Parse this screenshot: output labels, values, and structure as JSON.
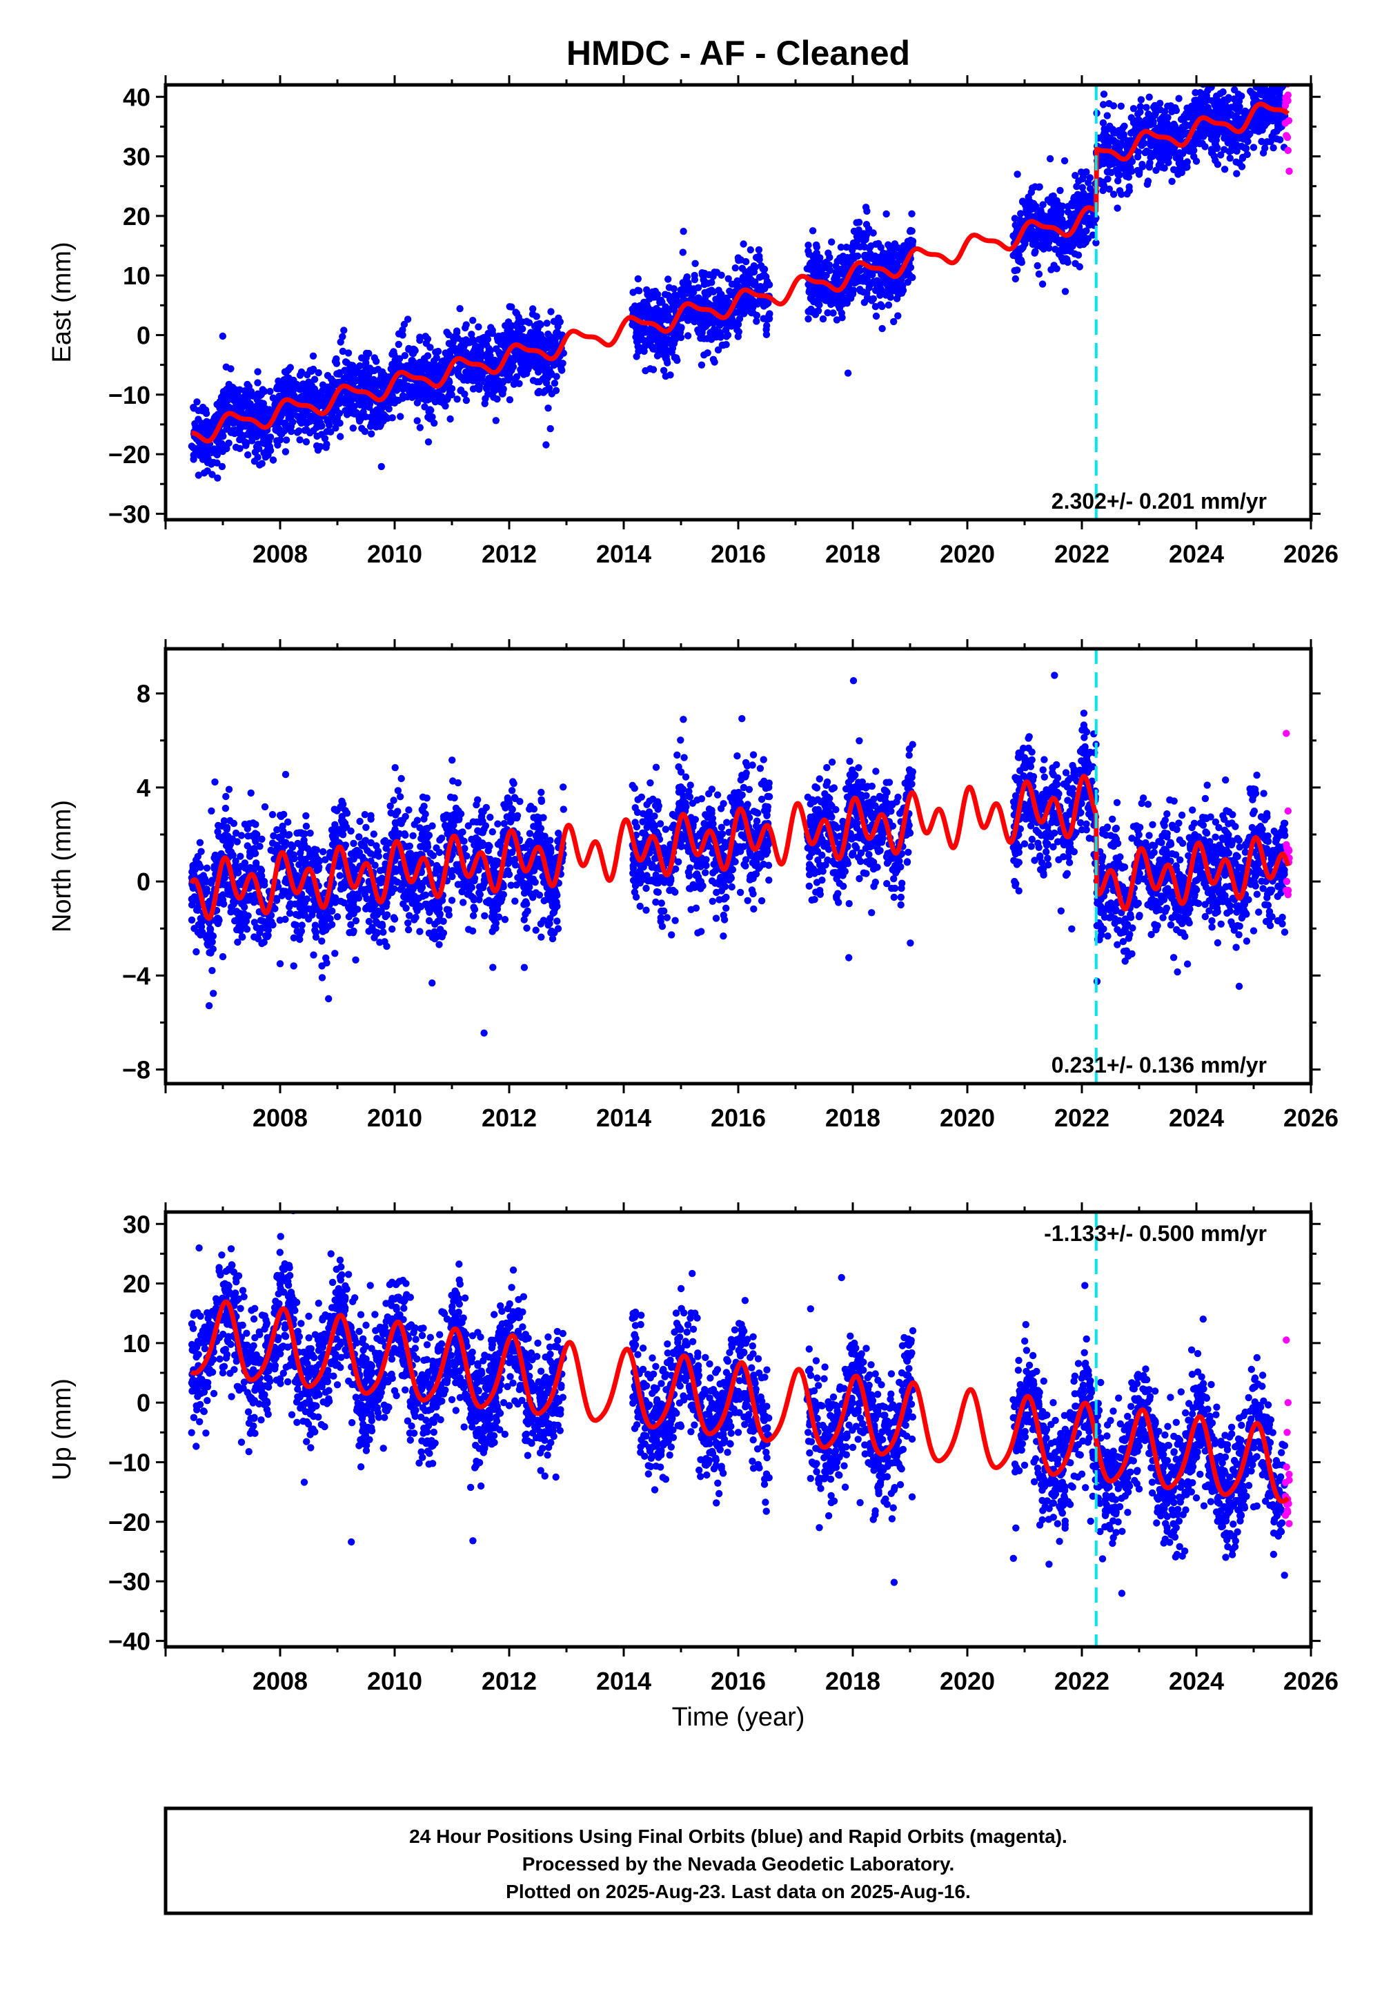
{
  "title": "HMDC  - AF - Cleaned",
  "xlabel": "Time (year)",
  "footer": [
    "24 Hour Positions Using Final Orbits (blue) and Rapid Orbits (magenta).",
    "Processed by the Nevada Geodetic Laboratory.",
    "Plotted on 2025-Aug-23. Last data on 2025-Aug-16."
  ],
  "colors": {
    "final_orbits": "#0000ff",
    "rapid_orbits": "#ff00ff",
    "model": "#ff0000",
    "event_line": "#00e5ee"
  },
  "chart_data": [
    {
      "type": "scatter",
      "ylabel": "East (mm)",
      "rate_text": "2.302+/- 0.201 mm/yr",
      "rate_position": "bottom-right",
      "xlim": [
        2006.0,
        2026.0
      ],
      "ylim": [
        -31,
        42
      ],
      "xticks": [
        2008,
        2010,
        2012,
        2014,
        2016,
        2018,
        2020,
        2022,
        2024,
        2026
      ],
      "yticks": [
        -30,
        -20,
        -10,
        0,
        10,
        20,
        30,
        40
      ],
      "event_line_x": 2022.25,
      "data_segments": [
        [
          2006.45,
          2012.95
        ],
        [
          2014.15,
          2016.55
        ],
        [
          2017.2,
          2019.05
        ],
        [
          2020.8,
          2025.55
        ]
      ],
      "rapid_x_range": [
        2025.55,
        2025.62
      ],
      "model": {
        "ref_year": 2006.45,
        "offset": -16.5,
        "rate": 2.302,
        "annual_amp": 1.6,
        "annual_phase": 0.4,
        "semi_amp": 0.6,
        "semi_phase": 1.0,
        "steps": [
          {
            "t": 2022.25,
            "size": 10.5
          }
        ]
      },
      "scatter_sd": 3.0,
      "series": [
        {
          "name": "Final Orbits",
          "points": [
            [
              2006.5,
              -16.2
            ],
            [
              2007.0,
              -18.5
            ],
            [
              2007.5,
              -13.8
            ],
            [
              2008.0,
              -16.0
            ],
            [
              2008.5,
              -11.2
            ],
            [
              2009.0,
              -13.9
            ],
            [
              2009.5,
              -9.0
            ],
            [
              2010.0,
              -11.4
            ],
            [
              2010.5,
              -6.9
            ],
            [
              2011.0,
              -9.0
            ],
            [
              2011.5,
              -4.6
            ],
            [
              2012.0,
              -6.8
            ],
            [
              2012.5,
              -2.4
            ],
            [
              2014.5,
              2.0
            ],
            [
              2015.0,
              -0.4
            ],
            [
              2015.5,
              4.2
            ],
            [
              2016.0,
              1.8
            ],
            [
              2016.5,
              6.5
            ],
            [
              2017.5,
              9.2
            ],
            [
              2018.0,
              6.9
            ],
            [
              2018.5,
              11.4
            ],
            [
              2020.9,
              13.4
            ],
            [
              2021.5,
              18.2
            ],
            [
              2022.0,
              15.8
            ],
            [
              2022.5,
              29.5
            ],
            [
              2023.0,
              27.0
            ],
            [
              2023.5,
              31.6
            ],
            [
              2024.0,
              29.2
            ],
            [
              2024.5,
              33.9
            ],
            [
              2025.0,
              31.5
            ],
            [
              2025.5,
              35.8
            ]
          ]
        },
        {
          "name": "Rapid Orbits",
          "points": [
            [
              2025.57,
              33.5
            ],
            [
              2025.6,
              31.0
            ],
            [
              2025.62,
              27.5
            ]
          ]
        }
      ]
    },
    {
      "type": "scatter",
      "ylabel": "North (mm)",
      "rate_text": "0.231+/- 0.136 mm/yr",
      "rate_position": "bottom-right",
      "xlim": [
        2006.0,
        2026.0
      ],
      "ylim": [
        -8.6,
        9.9
      ],
      "xticks": [
        2008,
        2010,
        2012,
        2014,
        2016,
        2018,
        2020,
        2022,
        2024,
        2026
      ],
      "yticks": [
        -8,
        -4,
        0,
        4,
        8
      ],
      "event_line_x": 2022.25,
      "data_segments": [
        [
          2006.45,
          2012.95
        ],
        [
          2014.15,
          2016.55
        ],
        [
          2017.2,
          2019.05
        ],
        [
          2020.8,
          2025.55
        ]
      ],
      "rapid_x_range": [
        2025.55,
        2025.62
      ],
      "model": {
        "ref_year": 2006.45,
        "offset": -0.4,
        "rate": 0.231,
        "annual_amp": 0.55,
        "annual_phase": 0.7,
        "semi_amp": 0.85,
        "semi_phase": 1.3,
        "steps": [
          {
            "t": 2022.25,
            "size": -3.3
          }
        ]
      },
      "scatter_sd": 1.15,
      "series": [
        {
          "name": "Final Orbits",
          "points": [
            [
              2006.5,
              -2.0
            ],
            [
              2007.0,
              -3.2
            ],
            [
              2008.0,
              -3.5
            ],
            [
              2009.0,
              -1.5
            ],
            [
              2010.0,
              -1.6
            ],
            [
              2011.0,
              -0.8
            ],
            [
              2012.0,
              0.3
            ],
            [
              2012.5,
              1.8
            ],
            [
              2014.5,
              2.5
            ],
            [
              2015.0,
              2.0
            ],
            [
              2016.0,
              2.4
            ],
            [
              2016.5,
              2.8
            ],
            [
              2017.5,
              1.5
            ],
            [
              2018.0,
              1.2
            ],
            [
              2018.5,
              2.0
            ],
            [
              2021.0,
              1.6
            ],
            [
              2021.5,
              2.8
            ],
            [
              2022.0,
              2.2
            ],
            [
              2022.5,
              -1.2
            ],
            [
              2023.0,
              -1.5
            ],
            [
              2023.5,
              -0.3
            ],
            [
              2024.0,
              -0.9
            ],
            [
              2024.5,
              -0.6
            ],
            [
              2025.0,
              -2.1
            ],
            [
              2025.5,
              -1.8
            ]
          ]
        },
        {
          "name": "Rapid Orbits",
          "points": [
            [
              2025.57,
              6.3
            ],
            [
              2025.6,
              3.0
            ],
            [
              2025.62,
              1.0
            ]
          ]
        }
      ]
    },
    {
      "type": "scatter",
      "ylabel": "Up (mm)",
      "rate_text": "-1.133+/- 0.500 mm/yr",
      "rate_position": "top-right",
      "xlim": [
        2006.0,
        2026.0
      ],
      "ylim": [
        -41,
        32
      ],
      "xticks": [
        2008,
        2010,
        2012,
        2014,
        2016,
        2018,
        2020,
        2022,
        2024,
        2026
      ],
      "yticks": [
        -40,
        -30,
        -20,
        -10,
        0,
        10,
        20,
        30
      ],
      "event_line_x": 2022.25,
      "data_segments": [
        [
          2006.45,
          2012.95
        ],
        [
          2014.15,
          2016.55
        ],
        [
          2017.2,
          2019.05
        ],
        [
          2020.8,
          2025.55
        ]
      ],
      "rapid_x_range": [
        2025.55,
        2025.62
      ],
      "model": {
        "ref_year": 2006.45,
        "offset": 10.5,
        "rate": -1.133,
        "annual_amp": 6.2,
        "annual_phase": 1.3,
        "semi_amp": 1.0,
        "semi_phase": 0.5,
        "steps": []
      },
      "scatter_sd": 4.8,
      "series": [
        {
          "name": "Final Orbits",
          "points": [
            [
              2006.5,
              15.0
            ],
            [
              2007.0,
              5.0
            ],
            [
              2007.5,
              15.5
            ],
            [
              2008.0,
              4.0
            ],
            [
              2008.5,
              14.5
            ],
            [
              2009.0,
              3.0
            ],
            [
              2009.5,
              13.0
            ],
            [
              2010.0,
              2.0
            ],
            [
              2010.5,
              12.5
            ],
            [
              2011.0,
              0.5
            ],
            [
              2011.5,
              11.0
            ],
            [
              2012.0,
              -0.5
            ],
            [
              2012.5,
              10.0
            ],
            [
              2014.5,
              7.5
            ],
            [
              2015.0,
              -4.0
            ],
            [
              2015.5,
              6.5
            ],
            [
              2016.0,
              -5.0
            ],
            [
              2016.5,
              5.5
            ],
            [
              2017.5,
              4.0
            ],
            [
              2018.0,
              -7.5
            ],
            [
              2018.5,
              3.0
            ],
            [
              2021.0,
              -10.5
            ],
            [
              2021.5,
              0.0
            ],
            [
              2022.0,
              -12.0
            ],
            [
              2022.5,
              -3.0
            ],
            [
              2023.0,
              -14.5
            ],
            [
              2023.5,
              -4.0
            ],
            [
              2024.0,
              -16.0
            ],
            [
              2024.5,
              -5.5
            ],
            [
              2025.0,
              -17.5
            ],
            [
              2025.5,
              -7.0
            ]
          ]
        },
        {
          "name": "Rapid Orbits",
          "points": [
            [
              2025.57,
              10.5
            ],
            [
              2025.6,
              0.0
            ],
            [
              2025.62,
              -13.0
            ]
          ]
        }
      ]
    }
  ]
}
